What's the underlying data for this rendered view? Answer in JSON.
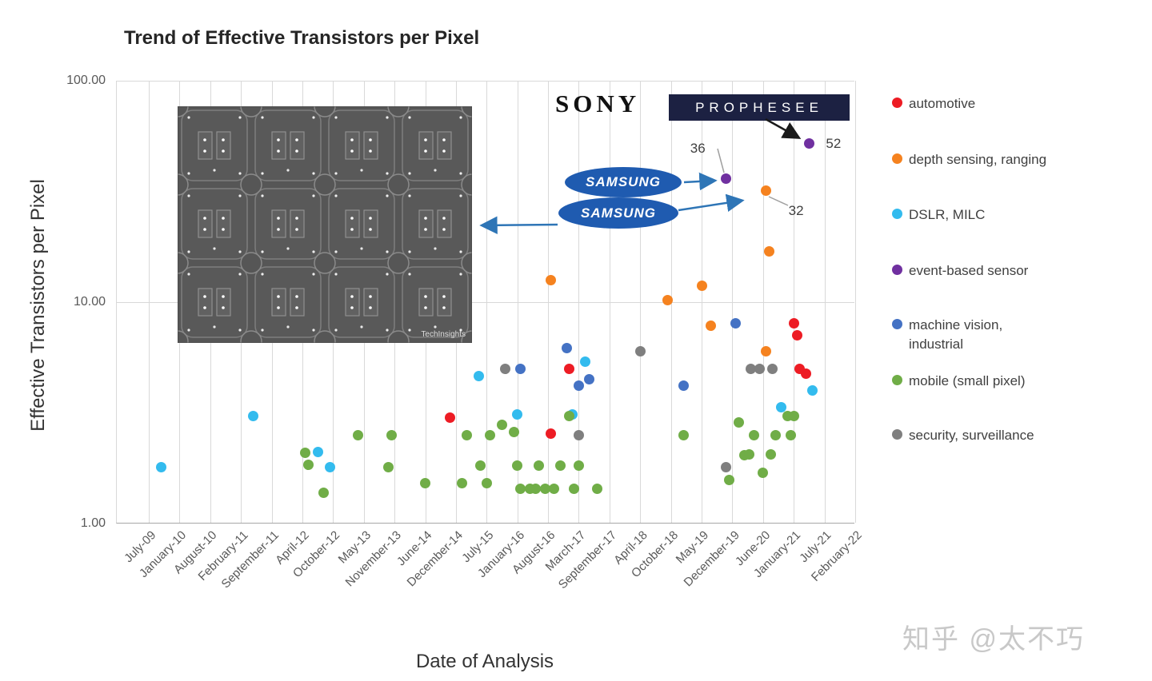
{
  "page": {
    "watermark": "知乎 @太不巧"
  },
  "chart": {
    "title": "Trend of Effective Transistors per Pixel",
    "x_axis_title": "Date of Analysis",
    "y_axis_title": "Effective Transistors per Pixel",
    "y_ticks": [
      "100.00",
      "10.00",
      "1.00"
    ]
  },
  "logos": {
    "sony": "SONY",
    "prophesee": "PROPHESEE",
    "samsung": "SAMSUNG"
  },
  "inset": {
    "credit": "TechInsights"
  },
  "chart_data": {
    "type": "scatter",
    "title": "Trend of Effective Transistors per Pixel",
    "xlabel": "Date of Analysis",
    "ylabel": "Effective Transistors per Pixel",
    "y_scale": "log",
    "ylim": [
      1,
      100
    ],
    "grid": "vertical-major",
    "legend_position": "right",
    "x_categories": [
      "July-09",
      "January-10",
      "August-10",
      "February-11",
      "September-11",
      "April-12",
      "October-12",
      "May-13",
      "November-13",
      "June-14",
      "December-14",
      "July-15",
      "January-16",
      "August-16",
      "March-17",
      "September-17",
      "April-18",
      "October-18",
      "May-19",
      "December-19",
      "June-20",
      "January-21",
      "July-21",
      "February-22"
    ],
    "x_unit": "category-index (fractional position along date axis)",
    "series": [
      {
        "name": "automotive",
        "label": "automotive",
        "color": "#ed1c24",
        "points": [
          [
            9.8,
            3.0
          ],
          [
            13.1,
            2.55
          ],
          [
            13.7,
            5.0
          ],
          [
            21.0,
            8.0
          ],
          [
            21.1,
            7.1
          ],
          [
            21.2,
            5.0
          ],
          [
            21.4,
            4.75
          ]
        ]
      },
      {
        "name": "depth sensing, ranging",
        "label": "depth sensing, ranging",
        "color": "#f5821f",
        "points": [
          [
            13.1,
            12.6
          ],
          [
            16.9,
            10.2
          ],
          [
            18.0,
            11.9
          ],
          [
            18.3,
            7.8
          ],
          [
            20.1,
            32
          ],
          [
            20.2,
            17
          ],
          [
            20.1,
            6.0
          ]
        ]
      },
      {
        "name": "DSLR, MILC",
        "label": "DSLR, MILC",
        "color": "#33bbee",
        "points": [
          [
            0.4,
            1.8
          ],
          [
            3.4,
            3.05
          ],
          [
            5.5,
            2.1
          ],
          [
            5.9,
            1.8
          ],
          [
            10.75,
            4.65
          ],
          [
            12.0,
            3.1
          ],
          [
            13.8,
            3.1
          ],
          [
            14.2,
            5.4
          ],
          [
            20.6,
            3.35
          ],
          [
            21.6,
            4.0
          ]
        ]
      },
      {
        "name": "event-based sensor",
        "label": "event-based sensor",
        "color": "#7030a0",
        "points": [
          [
            18.8,
            36
          ],
          [
            21.5,
            52
          ]
        ]
      },
      {
        "name": "machine vision, industrial",
        "label": "machine vision,\nindustrial",
        "color": "#4472c4",
        "points": [
          [
            12.1,
            5.0
          ],
          [
            13.6,
            6.2
          ],
          [
            14.0,
            4.2
          ],
          [
            14.35,
            4.5
          ],
          [
            17.4,
            4.2
          ],
          [
            19.1,
            8.0
          ]
        ]
      },
      {
        "name": "mobile (small pixel)",
        "label": "mobile (small pixel)",
        "color": "#70ad47",
        "points": [
          [
            5.1,
            2.08
          ],
          [
            5.2,
            1.84
          ],
          [
            5.7,
            1.38
          ],
          [
            6.8,
            2.5
          ],
          [
            7.8,
            1.79
          ],
          [
            7.9,
            2.5
          ],
          [
            9.0,
            1.52
          ],
          [
            10.2,
            1.52
          ],
          [
            10.35,
            2.5
          ],
          [
            10.8,
            1.82
          ],
          [
            11.0,
            1.52
          ],
          [
            11.1,
            2.5
          ],
          [
            11.5,
            2.8
          ],
          [
            11.9,
            2.6
          ],
          [
            12.0,
            1.82
          ],
          [
            12.1,
            1.43
          ],
          [
            12.4,
            1.43
          ],
          [
            12.6,
            1.43
          ],
          [
            12.7,
            1.82
          ],
          [
            12.9,
            1.43
          ],
          [
            13.2,
            1.43
          ],
          [
            13.4,
            1.82
          ],
          [
            13.7,
            3.05
          ],
          [
            13.85,
            1.43
          ],
          [
            14.0,
            1.82
          ],
          [
            14.6,
            1.43
          ],
          [
            17.4,
            2.5
          ],
          [
            18.9,
            1.57
          ],
          [
            19.2,
            2.87
          ],
          [
            19.4,
            2.03
          ],
          [
            19.55,
            2.06
          ],
          [
            19.7,
            2.5
          ],
          [
            20.0,
            1.7
          ],
          [
            20.25,
            2.06
          ],
          [
            20.4,
            2.5
          ],
          [
            20.8,
            3.07
          ],
          [
            20.9,
            2.5
          ],
          [
            21.0,
            3.07
          ]
        ]
      },
      {
        "name": "security, surveillance",
        "label": "security, surveillance",
        "color": "#7f7f7f",
        "points": [
          [
            11.6,
            5.0
          ],
          [
            14.0,
            2.5
          ],
          [
            16.0,
            6.0
          ],
          [
            18.8,
            1.79
          ],
          [
            19.6,
            5.0
          ],
          [
            19.9,
            5.0
          ],
          [
            20.3,
            5.0
          ]
        ]
      }
    ],
    "annotations": [
      {
        "text": "36",
        "series": "event-based sensor",
        "point": [
          18.8,
          36
        ]
      },
      {
        "text": "52",
        "series": "event-based sensor",
        "point": [
          21.5,
          52
        ]
      },
      {
        "text": "32",
        "series": "depth sensing, ranging",
        "point": [
          20.1,
          32
        ]
      }
    ]
  }
}
